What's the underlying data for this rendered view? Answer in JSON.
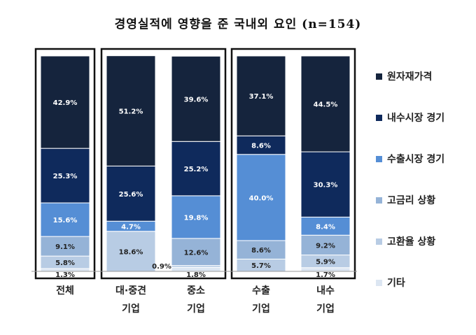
{
  "chart_data": {
    "type": "bar",
    "stacked": true,
    "title": "경영실적에 영향을 준 국내외 요인 (n=154)",
    "categories": [
      {
        "lines": [
          "전체"
        ]
      },
      {
        "lines": [
          "대·중견",
          "기업"
        ]
      },
      {
        "lines": [
          "중소",
          "기업"
        ]
      },
      {
        "lines": [
          "수출",
          "기업"
        ]
      },
      {
        "lines": [
          "내수",
          "기업"
        ]
      }
    ],
    "groups": [
      [
        0
      ],
      [
        1,
        2
      ],
      [
        3,
        4
      ]
    ],
    "ylim": [
      0,
      100
    ],
    "series": [
      {
        "name": "기타",
        "color": "#dce6f2",
        "text_color": "#222222",
        "values": [
          1.3,
          0,
          1.8,
          0,
          1.7
        ],
        "labels": [
          "1.3%",
          "",
          "1.8%",
          "",
          "1.7%"
        ]
      },
      {
        "name": "고환율 상황",
        "color": "#b8cce4",
        "text_color": "#222222",
        "values": [
          5.8,
          18.6,
          0.9,
          5.7,
          5.9
        ],
        "labels": [
          "5.8%",
          "18.6%",
          "0.9%",
          "5.7%",
          "5.9%"
        ]
      },
      {
        "name": "고금리 상황",
        "color": "#95b3d7",
        "text_color": "#222222",
        "values": [
          9.1,
          0,
          12.6,
          8.6,
          9.2
        ],
        "labels": [
          "9.1%",
          "",
          "12.6%",
          "8.6%",
          "9.2%"
        ]
      },
      {
        "name": "수출시장 경기",
        "color": "#558ed5",
        "text_color": "#ffffff",
        "values": [
          15.6,
          4.7,
          19.8,
          40.0,
          8.4
        ],
        "labels": [
          "15.6%",
          "4.7%",
          "19.8%",
          "40.0%",
          "8.4%"
        ]
      },
      {
        "name": "내수시장 경기",
        "color": "#0f2a5c",
        "text_color": "#ffffff",
        "values": [
          25.3,
          25.6,
          25.2,
          8.6,
          30.3
        ],
        "labels": [
          "25.3%",
          "25.6%",
          "25.2%",
          "8.6%",
          "30.3%"
        ]
      },
      {
        "name": "원자재가격",
        "color": "#15243d",
        "text_color": "#ffffff",
        "values": [
          42.9,
          51.2,
          39.6,
          37.1,
          44.5
        ],
        "labels": [
          "42.9%",
          "51.2%",
          "39.6%",
          "37.1%",
          "44.5%"
        ]
      }
    ],
    "legend": {
      "position": "right",
      "order": [
        "원자재가격",
        "내수시장 경기",
        "수출시장 경기",
        "고금리 상황",
        "고환율 상황",
        "기타"
      ]
    },
    "grid": false
  }
}
